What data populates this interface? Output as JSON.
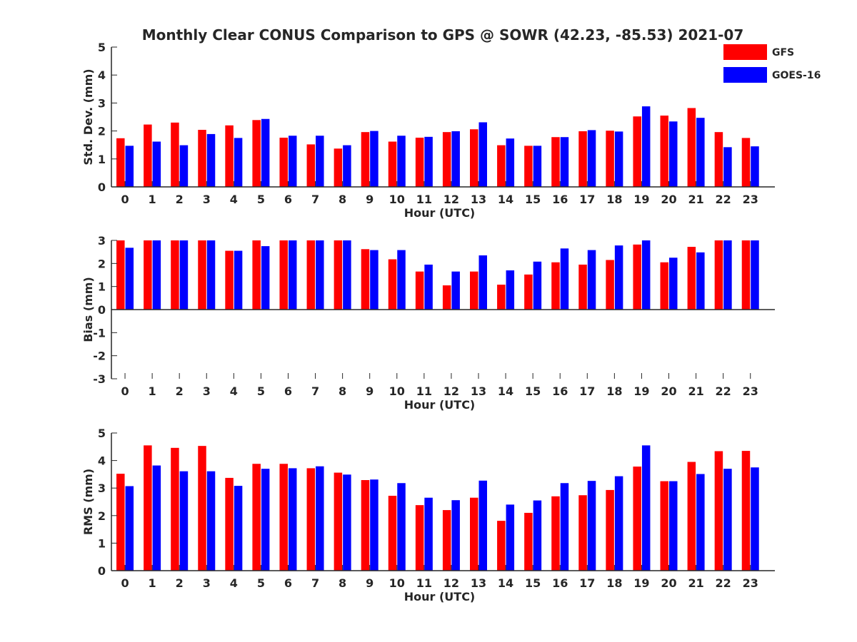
{
  "title": "Monthly Clear CONUS Comparison to GPS @ SOWR (42.23, -85.53) 2021-07",
  "colors": {
    "GFS": "#ff0000",
    "GOES-16": "#0000ff",
    "axis": "#262626"
  },
  "legend": {
    "placement": "top-right",
    "entries": [
      "GFS",
      "GOES-16"
    ]
  },
  "chart_data": [
    {
      "type": "bar",
      "xlabel": "Hour (UTC)",
      "ylabel": "Std. Dev. (mm)",
      "ylim": [
        0,
        5
      ],
      "yticks": [
        0,
        1,
        2,
        3,
        4,
        5
      ],
      "categories": [
        "0",
        "1",
        "2",
        "3",
        "4",
        "5",
        "6",
        "7",
        "8",
        "9",
        "10",
        "11",
        "12",
        "13",
        "14",
        "15",
        "16",
        "17",
        "18",
        "19",
        "20",
        "21",
        "22",
        "23"
      ],
      "series": [
        {
          "name": "GFS",
          "values": [
            1.74,
            2.23,
            2.3,
            2.04,
            2.2,
            2.39,
            1.76,
            1.52,
            1.37,
            1.96,
            1.62,
            1.76,
            1.96,
            2.06,
            1.49,
            1.47,
            1.78,
            1.99,
            2.01,
            2.52,
            2.55,
            2.82,
            1.96,
            1.75
          ]
        },
        {
          "name": "GOES-16",
          "values": [
            1.47,
            1.62,
            1.49,
            1.89,
            1.75,
            2.43,
            1.83,
            1.83,
            1.49,
            2.0,
            1.83,
            1.79,
            1.99,
            2.31,
            1.73,
            1.47,
            1.78,
            2.03,
            1.98,
            2.88,
            2.34,
            2.47,
            1.42,
            1.45
          ]
        }
      ]
    },
    {
      "type": "bar",
      "xlabel": "Hour (UTC)",
      "ylabel": "Bias (mm)",
      "ylim": [
        -3,
        3
      ],
      "yticks": [
        -3,
        -2,
        -1,
        0,
        1,
        2,
        3
      ],
      "categories": [
        "0",
        "1",
        "2",
        "3",
        "4",
        "5",
        "6",
        "7",
        "8",
        "9",
        "10",
        "11",
        "12",
        "13",
        "14",
        "15",
        "16",
        "17",
        "18",
        "19",
        "20",
        "21",
        "22",
        "23"
      ],
      "series": [
        {
          "name": "GFS",
          "values": [
            3.0,
            3.0,
            3.0,
            3.0,
            2.55,
            3.0,
            3.0,
            3.0,
            3.0,
            2.62,
            2.18,
            1.65,
            1.05,
            1.65,
            1.08,
            1.52,
            2.05,
            1.95,
            2.15,
            2.82,
            2.05,
            2.72,
            3.0,
            3.0
          ]
        },
        {
          "name": "GOES-16",
          "values": [
            2.68,
            3.0,
            3.0,
            3.0,
            2.55,
            2.75,
            3.0,
            3.0,
            3.0,
            2.58,
            2.58,
            1.95,
            1.65,
            2.35,
            1.7,
            2.08,
            2.65,
            2.58,
            2.78,
            3.0,
            2.25,
            2.48,
            3.0,
            3.0
          ]
        }
      ]
    },
    {
      "type": "bar",
      "xlabel": "Hour (UTC)",
      "ylabel": "RMS (mm)",
      "ylim": [
        0,
        5
      ],
      "yticks": [
        0,
        1,
        2,
        3,
        4,
        5
      ],
      "categories": [
        "0",
        "1",
        "2",
        "3",
        "4",
        "5",
        "6",
        "7",
        "8",
        "9",
        "10",
        "11",
        "12",
        "13",
        "14",
        "15",
        "16",
        "17",
        "18",
        "19",
        "20",
        "21",
        "22",
        "23"
      ],
      "series": [
        {
          "name": "GFS",
          "values": [
            3.52,
            4.55,
            4.46,
            4.53,
            3.37,
            3.88,
            3.88,
            3.72,
            3.56,
            3.29,
            2.72,
            2.38,
            2.2,
            2.65,
            1.81,
            2.1,
            2.7,
            2.74,
            2.93,
            3.78,
            3.25,
            3.95,
            4.34,
            4.35
          ]
        },
        {
          "name": "GOES-16",
          "values": [
            3.07,
            3.82,
            3.61,
            3.61,
            3.08,
            3.7,
            3.72,
            3.79,
            3.49,
            3.31,
            3.18,
            2.65,
            2.56,
            3.27,
            2.4,
            2.55,
            3.18,
            3.26,
            3.43,
            4.55,
            3.25,
            3.51,
            3.7,
            3.75
          ]
        }
      ]
    }
  ]
}
